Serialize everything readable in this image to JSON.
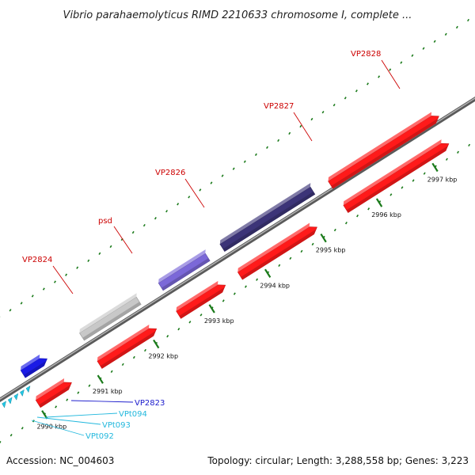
{
  "title": "Vibrio parahaemolyticus RIMD 2210633 chromosome I, complete ...",
  "footer": {
    "accession": "Accession: NC_004603",
    "summary": "Topology: circular; Length: 3,288,558 bp; Genes: 3,223"
  },
  "colors": {
    "cds": "#ff1a1a",
    "trna": "#22c8e6",
    "misc_blue": "#1a1ae6",
    "backbone": "#808080",
    "tick": "#1a7a1a",
    "gene_label_red": "#cc0000",
    "gene_label_blue": "#1a1acc",
    "gene_label_cyan": "#22b8dd"
  },
  "kbp_ticks": [
    {
      "kbp": 2990,
      "label": "2990 kbp"
    },
    {
      "kbp": 2991,
      "label": "2991 kbp"
    },
    {
      "kbp": 2992,
      "label": "2992 kbp"
    },
    {
      "kbp": 2993,
      "label": "2993 kbp"
    },
    {
      "kbp": 2994,
      "label": "2994 kbp"
    },
    {
      "kbp": 2995,
      "label": "2995 kbp"
    },
    {
      "kbp": 2996,
      "label": "2996 kbp"
    },
    {
      "kbp": 2997,
      "label": "2997 kbp"
    }
  ],
  "gene_labels": [
    {
      "name": "VP2824",
      "color": "red"
    },
    {
      "name": "psd",
      "color": "red"
    },
    {
      "name": "VP2826",
      "color": "red"
    },
    {
      "name": "VP2827",
      "color": "red"
    },
    {
      "name": "VP2828",
      "color": "red"
    },
    {
      "name": "VP2823",
      "color": "blue"
    },
    {
      "name": "VPt094",
      "color": "cyan"
    },
    {
      "name": "VPt093",
      "color": "cyan"
    },
    {
      "name": "VPt092",
      "color": "cyan"
    }
  ]
}
